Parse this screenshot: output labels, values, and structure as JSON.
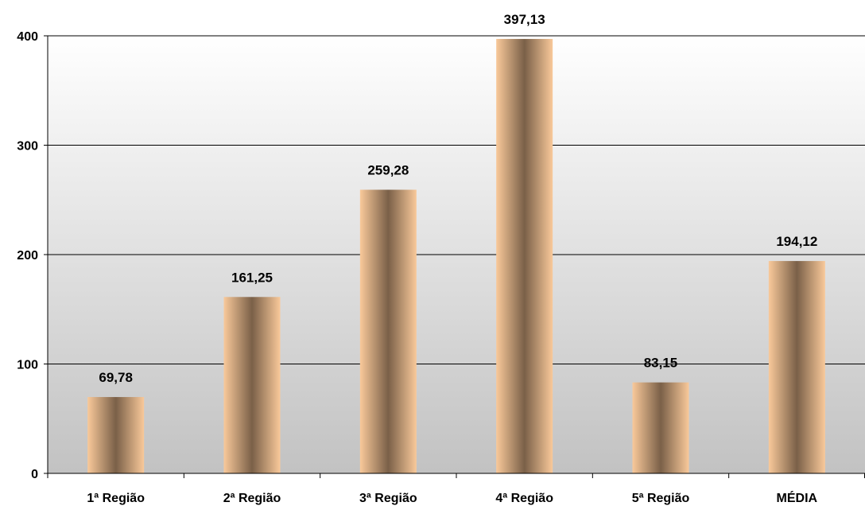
{
  "chart_data": {
    "type": "bar",
    "categories": [
      "1ª Região",
      "2ª Região",
      "3ª Região",
      "4ª Região",
      "5ª Região",
      "MÉDIA"
    ],
    "values": [
      69.78,
      161.25,
      259.28,
      397.13,
      83.15,
      194.12
    ],
    "data_labels": [
      "69,78",
      "161,25",
      "259,28",
      "397,13",
      "83,15",
      "194,12"
    ],
    "y_ticks": [
      "0",
      "100",
      "200",
      "300",
      "400"
    ],
    "ylim": [
      0,
      400
    ],
    "grid": true,
    "legend": "none",
    "colors": {
      "bar_light": "#f9c99a",
      "bar_dark": "#7a6048",
      "background_top": "#ffffff",
      "background_bottom": "#c2c2c2",
      "gridline": "#000000"
    }
  }
}
